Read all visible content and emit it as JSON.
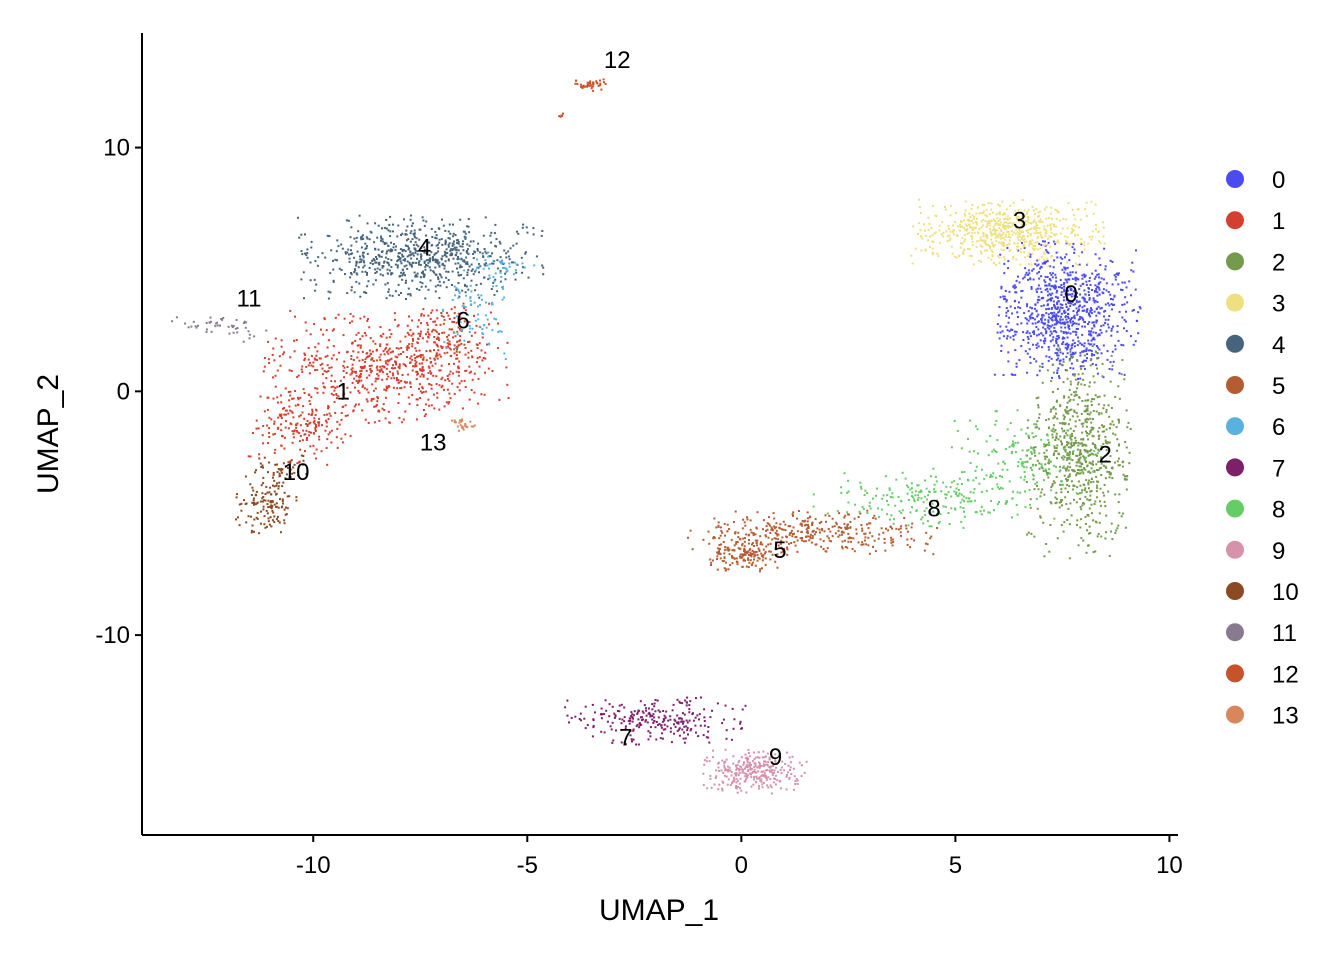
{
  "chart_data": {
    "type": "scatter",
    "xlabel": "UMAP_1",
    "ylabel": "UMAP_2",
    "xlim": [
      -14,
      10.2
    ],
    "ylim": [
      -18.2,
      14.7
    ],
    "x_ticks": [
      -10,
      -5,
      0,
      5,
      10
    ],
    "y_ticks": [
      -10,
      0,
      10
    ],
    "x_tick_labels": [
      "-10",
      "-5",
      "0",
      "5",
      "10"
    ],
    "y_tick_labels": [
      "-10",
      "0",
      "10"
    ],
    "legend_position": "right",
    "grid": false,
    "clusters": [
      {
        "name": "0",
        "color": "#4B4BF5",
        "label_pos": [
          7.7,
          4.0
        ],
        "n": 900,
        "blobs": [
          {
            "cx": 7.6,
            "cy": 3.3,
            "sx": 0.75,
            "sy": 1.25,
            "w": 1.0
          }
        ]
      },
      {
        "name": "1",
        "color": "#D43F2F",
        "label_pos": [
          -9.3,
          0.0
        ],
        "n": 950,
        "blobs": [
          {
            "cx": -8.3,
            "cy": 1.0,
            "sx": 1.25,
            "sy": 1.0,
            "w": 0.65
          },
          {
            "cx": -10.3,
            "cy": -1.3,
            "sx": 0.55,
            "sy": 0.75,
            "w": 0.2
          },
          {
            "cx": -6.9,
            "cy": 2.2,
            "sx": 0.55,
            "sy": 0.7,
            "w": 0.15
          }
        ]
      },
      {
        "name": "2",
        "color": "#739B4B",
        "label_pos": [
          8.5,
          -2.6
        ],
        "n": 700,
        "blobs": [
          {
            "cx": 7.9,
            "cy": -2.5,
            "sx": 0.55,
            "sy": 1.9,
            "w": 1.0
          }
        ]
      },
      {
        "name": "3",
        "color": "#EEE080",
        "label_pos": [
          6.5,
          7.0
        ],
        "n": 600,
        "blobs": [
          {
            "cx": 6.2,
            "cy": 6.5,
            "sx": 1.0,
            "sy": 0.6,
            "w": 1.0
          }
        ]
      },
      {
        "name": "4",
        "color": "#46657C",
        "label_pos": [
          -7.4,
          5.9
        ],
        "n": 700,
        "blobs": [
          {
            "cx": -7.5,
            "cy": 5.5,
            "sx": 1.25,
            "sy": 0.75,
            "w": 1.0
          }
        ]
      },
      {
        "name": "5",
        "color": "#B65C32",
        "label_pos": [
          0.9,
          -6.5
        ],
        "n": 500,
        "blobs": [
          {
            "cx": 1.7,
            "cy": -5.8,
            "sx": 1.3,
            "sy": 0.4,
            "w": 0.7
          },
          {
            "cx": 0.1,
            "cy": -6.7,
            "sx": 0.4,
            "sy": 0.3,
            "w": 0.3
          }
        ]
      },
      {
        "name": "6",
        "color": "#5AB0DE",
        "label_pos": [
          -6.5,
          2.9
        ],
        "n": 120,
        "blobs": [
          {
            "cx": -6.2,
            "cy": 3.5,
            "sx": 0.35,
            "sy": 1.0,
            "w": 0.75
          },
          {
            "cx": -5.5,
            "cy": 5.1,
            "sx": 0.3,
            "sy": 0.2,
            "w": 0.25
          }
        ]
      },
      {
        "name": "7",
        "color": "#7E1F6A",
        "label_pos": [
          -2.7,
          -14.2
        ],
        "n": 260,
        "blobs": [
          {
            "cx": -2.0,
            "cy": -13.5,
            "sx": 0.95,
            "sy": 0.45,
            "w": 1.0
          }
        ]
      },
      {
        "name": "8",
        "color": "#66CC66",
        "label_pos": [
          4.5,
          -4.8
        ],
        "n": 350,
        "blobs": [
          {
            "cx": 4.5,
            "cy": -4.4,
            "sx": 1.3,
            "sy": 0.55,
            "w": 0.6
          },
          {
            "cx": 6.5,
            "cy": -2.8,
            "sx": 0.8,
            "sy": 0.9,
            "w": 0.4
          }
        ]
      },
      {
        "name": "9",
        "color": "#D692A8",
        "label_pos": [
          0.8,
          -15.0
        ],
        "n": 300,
        "blobs": [
          {
            "cx": 0.3,
            "cy": -15.6,
            "sx": 0.55,
            "sy": 0.4,
            "w": 1.0
          }
        ]
      },
      {
        "name": "10",
        "color": "#8A4A22",
        "label_pos": [
          -10.4,
          -3.3
        ],
        "n": 180,
        "blobs": [
          {
            "cx": -11.1,
            "cy": -4.7,
            "sx": 0.35,
            "sy": 0.55,
            "w": 0.7
          },
          {
            "cx": -10.7,
            "cy": -3.2,
            "sx": 0.3,
            "sy": 0.35,
            "w": 0.3
          }
        ]
      },
      {
        "name": "11",
        "color": "#887A8F",
        "label_pos": [
          -11.5,
          3.8
        ],
        "n": 45,
        "blobs": [
          {
            "cx": -12.3,
            "cy": 2.7,
            "sx": 0.45,
            "sy": 0.18,
            "w": 0.8
          },
          {
            "cx": -11.5,
            "cy": 2.3,
            "sx": 0.2,
            "sy": 0.3,
            "w": 0.2
          }
        ]
      },
      {
        "name": "12",
        "color": "#C8522A",
        "label_pos": [
          -2.9,
          13.6
        ],
        "n": 45,
        "blobs": [
          {
            "cx": -3.5,
            "cy": 12.6,
            "sx": 0.2,
            "sy": 0.12,
            "w": 0.9
          },
          {
            "cx": -4.2,
            "cy": 11.3,
            "sx": 0.05,
            "sy": 0.05,
            "w": 0.1
          }
        ]
      },
      {
        "name": "13",
        "color": "#D9875A",
        "label_pos": [
          -7.2,
          -2.1
        ],
        "n": 25,
        "blobs": [
          {
            "cx": -6.5,
            "cy": -1.4,
            "sx": 0.15,
            "sy": 0.12,
            "w": 1.0
          }
        ]
      }
    ]
  }
}
